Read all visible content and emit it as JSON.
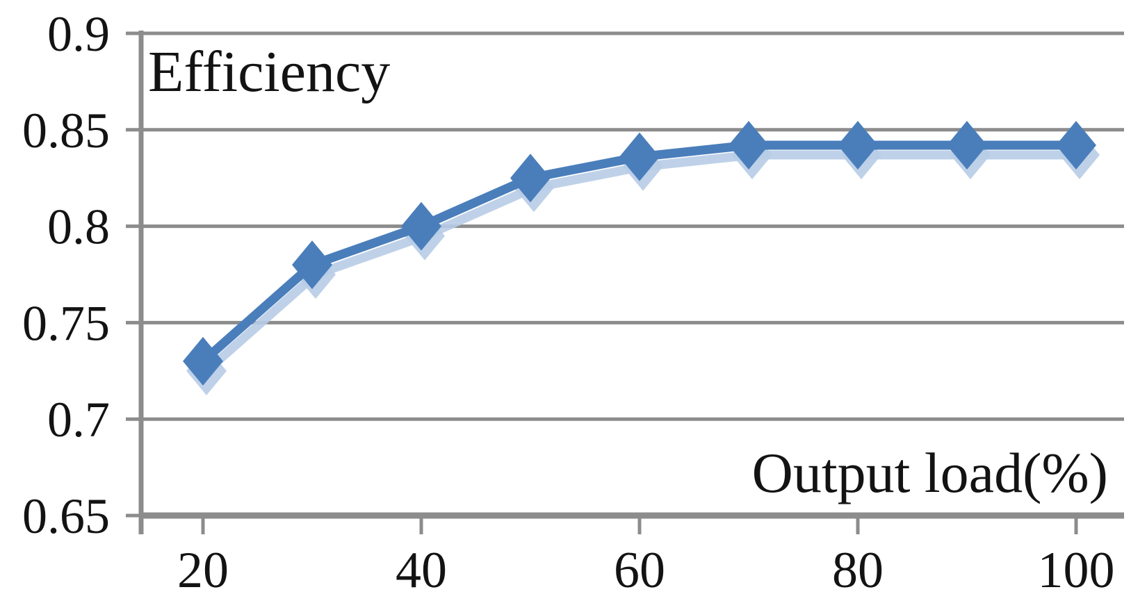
{
  "chart_data": {
    "type": "line",
    "title": "Efficiency",
    "xlabel": "Output load(%)",
    "ylabel": "",
    "x": [
      20,
      30,
      40,
      50,
      60,
      70,
      80,
      90,
      100
    ],
    "series": [
      {
        "name": "Efficiency",
        "values": [
          0.73,
          0.78,
          0.8,
          0.825,
          0.836,
          0.842,
          0.842,
          0.842,
          0.842
        ]
      }
    ],
    "xticks": [
      20,
      40,
      60,
      80,
      100
    ],
    "xtick_labels": [
      "20",
      "40",
      "60",
      "80",
      "100"
    ],
    "yticks": [
      0.65,
      0.7,
      0.75,
      0.8,
      0.85,
      0.9
    ],
    "ytick_labels": [
      "0.65",
      "0.7",
      "0.75",
      "0.8",
      "0.85",
      "0.9"
    ],
    "ylim": [
      0.65,
      0.9
    ],
    "xlim": [
      14.5,
      104.5
    ],
    "grid": true,
    "legend_position": "none",
    "marker": "diamond",
    "colors": {
      "line": "#4a7ebb",
      "line_shadow": "#b7cce6",
      "grid": "#8c8c8c",
      "axis": "#8c8c8c",
      "text": "#131313",
      "background": "#ffffff"
    }
  }
}
